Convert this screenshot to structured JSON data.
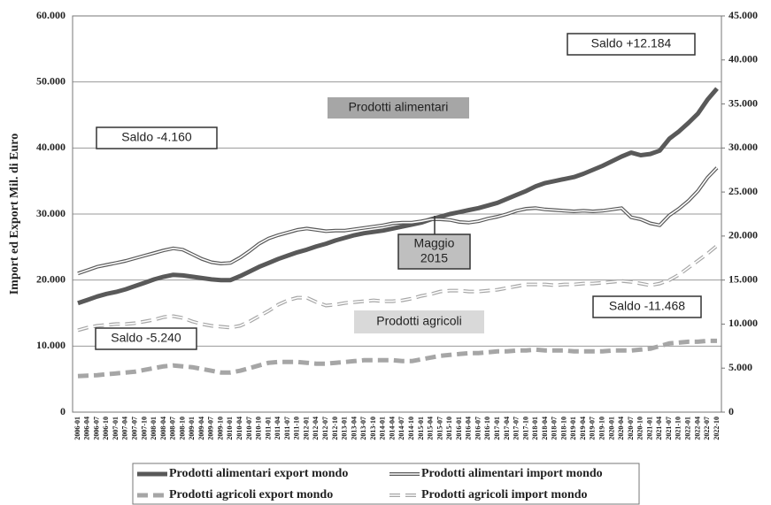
{
  "chart_data": {
    "type": "line",
    "y_label": "Import ed Export Mil. di Euro",
    "categories": [
      "2006-01",
      "2006-04",
      "2006-07",
      "2006-10",
      "2007-01",
      "2007-04",
      "2007-07",
      "2007-10",
      "2008-01",
      "2008-04",
      "2008-07",
      "2008-10",
      "2009-01",
      "2009-04",
      "2009-07",
      "2009-10",
      "2010-01",
      "2010-04",
      "2010-07",
      "2010-10",
      "2011-01",
      "2011-04",
      "2011-07",
      "2011-10",
      "2012-01",
      "2012-04",
      "2012-07",
      "2012-10",
      "2013-01",
      "2013-04",
      "2013-07",
      "2013-10",
      "2014-01",
      "2014-04",
      "2014-07",
      "2014-10",
      "2015-01",
      "2015-04",
      "2015-07",
      "2015-10",
      "2016-01",
      "2016-04",
      "2016-07",
      "2016-10",
      "2017-01",
      "2017-04",
      "2017-07",
      "2017-10",
      "2018-01",
      "2018-04",
      "2018-07",
      "2018-10",
      "2019-01",
      "2019-04",
      "2019-07",
      "2019-10",
      "2020-01",
      "2020-04",
      "2020-07",
      "2020-10",
      "2021-01",
      "2021-04",
      "2021-07",
      "2021-10",
      "2022-01",
      "2022-04",
      "2022-07",
      "2022-10"
    ],
    "series": [
      {
        "name": "Prodotti alimentari export mondo",
        "color": "#595959",
        "style": "solid",
        "axis": "y",
        "values": [
          16500,
          17000,
          17500,
          17900,
          18200,
          18600,
          19100,
          19600,
          20100,
          20500,
          20800,
          20700,
          20500,
          20300,
          20100,
          20000,
          20000,
          20600,
          21300,
          22000,
          22600,
          23200,
          23700,
          24200,
          24600,
          25100,
          25500,
          26000,
          26400,
          26800,
          27100,
          27300,
          27500,
          27800,
          28100,
          28400,
          28700,
          29200,
          29600,
          30000,
          30300,
          30600,
          30900,
          31300,
          31700,
          32300,
          32900,
          33500,
          34200,
          34700,
          35000,
          35300,
          35600,
          36100,
          36700,
          37300,
          38000,
          38700,
          39300,
          38900,
          39100,
          39600,
          41400,
          42500,
          43800,
          45200,
          47300,
          49000
        ]
      },
      {
        "name": "Prodotti alimentari import mondo",
        "color": "#595959",
        "style": "double",
        "axis": "y",
        "values": [
          21000,
          21500,
          22000,
          22300,
          22600,
          22900,
          23300,
          23700,
          24100,
          24500,
          24800,
          24600,
          23900,
          23200,
          22700,
          22500,
          22600,
          23400,
          24400,
          25500,
          26300,
          26800,
          27200,
          27600,
          27800,
          27600,
          27400,
          27500,
          27500,
          27700,
          27900,
          28100,
          28300,
          28600,
          28700,
          28700,
          28900,
          29200,
          29200,
          29100,
          28800,
          28700,
          28900,
          29300,
          29600,
          30000,
          30500,
          30800,
          30900,
          30700,
          30600,
          30500,
          30400,
          30500,
          30400,
          30500,
          30700,
          30900,
          29500,
          29200,
          28600,
          28300,
          29800,
          30800,
          32000,
          33500,
          35500,
          37000
        ]
      },
      {
        "name": "Prodotti agricoli export mondo",
        "color": "#a6a6a6",
        "style": "dashed",
        "axis": "y2",
        "values": [
          4100,
          4150,
          4200,
          4300,
          4400,
          4500,
          4600,
          4800,
          5000,
          5200,
          5300,
          5200,
          5100,
          4900,
          4700,
          4500,
          4500,
          4700,
          5000,
          5300,
          5600,
          5700,
          5700,
          5700,
          5600,
          5500,
          5500,
          5600,
          5700,
          5800,
          5900,
          5900,
          5900,
          5900,
          5800,
          5800,
          6000,
          6200,
          6400,
          6500,
          6600,
          6700,
          6700,
          6800,
          6900,
          6900,
          7000,
          7000,
          7100,
          7000,
          7000,
          7000,
          6900,
          6900,
          6900,
          6900,
          7000,
          7000,
          7000,
          7100,
          7200,
          7500,
          7800,
          7900,
          8000,
          8000,
          8100,
          8100
        ]
      },
      {
        "name": "Prodotti agricoli import mondo",
        "color": "#a6a6a6",
        "style": "double-dashed",
        "axis": "y2",
        "values": [
          9300,
          9600,
          9800,
          9900,
          10000,
          10000,
          10100,
          10300,
          10500,
          10800,
          10900,
          10700,
          10300,
          10000,
          9800,
          9700,
          9600,
          9800,
          10300,
          10900,
          11500,
          12200,
          12700,
          13000,
          13000,
          12500,
          12100,
          12200,
          12400,
          12500,
          12600,
          12700,
          12600,
          12600,
          12700,
          12900,
          13200,
          13400,
          13700,
          13800,
          13800,
          13700,
          13700,
          13800,
          13900,
          14100,
          14300,
          14500,
          14500,
          14500,
          14400,
          14500,
          14500,
          14600,
          14600,
          14700,
          14800,
          14900,
          14800,
          14600,
          14400,
          14600,
          15000,
          15600,
          16400,
          17200,
          18000,
          18900
        ]
      }
    ],
    "ylim": [
      0,
      60000
    ],
    "yticks": [
      0,
      {
        "value": 10000,
        "label": "10.000"
      },
      {
        "value": 20000,
        "label": "20.000"
      },
      {
        "value": 30000,
        "label": "30.000"
      },
      {
        "value": 40000,
        "label": "40.000"
      },
      {
        "value": 50000,
        "label": "50.000"
      },
      {
        "value": 60000,
        "label": "60.000"
      }
    ],
    "y2lim": [
      0,
      45000
    ],
    "y2ticks": [
      0,
      {
        "value": 5000,
        "label": "5.000"
      },
      {
        "value": 10000,
        "label": "10.000"
      },
      {
        "value": 15000,
        "label": "15.000"
      },
      {
        "value": 20000,
        "label": "20.000"
      },
      {
        "value": 25000,
        "label": "25.000"
      },
      {
        "value": 30000,
        "label": "30.000"
      },
      {
        "value": 35000,
        "label": "35.000"
      },
      {
        "value": 40000,
        "label": "40.000"
      },
      {
        "value": 45000,
        "label": "45.000"
      }
    ],
    "grid": true,
    "legend": "bottom",
    "annotations": [
      {
        "lines": [
          "Saldo +12.184"
        ]
      },
      {
        "lines": [
          "Prodotti alimentari"
        ]
      },
      {
        "lines": [
          "Saldo -4.160"
        ]
      },
      {
        "lines": [
          "Maggio",
          "2015"
        ]
      },
      {
        "lines": [
          "Prodotti agricoli"
        ]
      },
      {
        "lines": [
          "Saldo -11.468"
        ]
      },
      {
        "lines": [
          "Saldo -5.240"
        ]
      }
    ]
  }
}
